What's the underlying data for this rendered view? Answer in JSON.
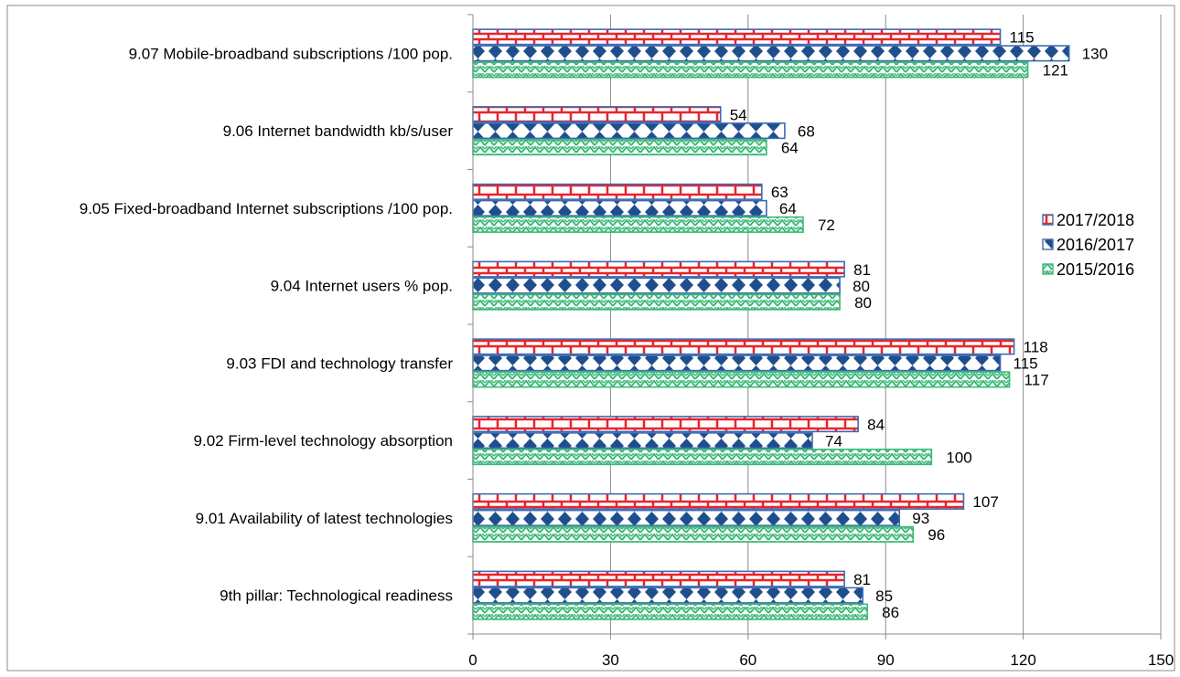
{
  "chart_data": {
    "type": "bar",
    "orientation": "horizontal",
    "categories": [
      "9.07 Mobile-broadband subscriptions /100 pop.",
      "9.06 Internet bandwidth kb/s/user",
      "9.05 Fixed-broadband Internet subscriptions /100 pop.",
      "9.04 Internet users % pop.",
      "9.03 FDI and technology transfer",
      "9.02 Firm-level technology absorption",
      "9.01 Availability of latest technologies",
      "9th pillar: Technological readiness"
    ],
    "series": [
      {
        "name": "2017/2018",
        "values": [
          115,
          54,
          63,
          81,
          118,
          84,
          107,
          81
        ],
        "color": "#e8242b",
        "outline": "#3d6bb3",
        "pattern": "brick"
      },
      {
        "name": "2016/2017",
        "values": [
          130,
          68,
          64,
          80,
          115,
          74,
          93,
          85
        ],
        "color": "#1f4e8c",
        "outline": "#3d6bb3",
        "pattern": "diamond"
      },
      {
        "name": "2015/2016",
        "values": [
          121,
          64,
          72,
          80,
          117,
          100,
          96,
          86
        ],
        "color": "#3cb878",
        "outline": "#3cb878",
        "pattern": "zigzag"
      }
    ],
    "xlim": [
      0,
      150
    ],
    "xticks": [
      0,
      30,
      60,
      90,
      120,
      150
    ],
    "grid": "vertical",
    "legend": "right",
    "title": "",
    "xlabel": "",
    "ylabel": ""
  }
}
